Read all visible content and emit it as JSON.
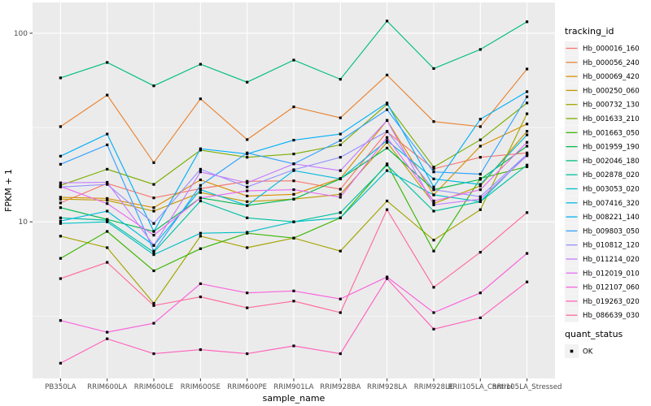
{
  "figure": {
    "y_axis_title": "FPKM + 1",
    "x_axis_title": "sample_name",
    "legend_color_title": "tracking_id",
    "legend_shape_title": "quant_status",
    "legend_shape_items": [
      {
        "label": "OK",
        "icon": "square-point-icon",
        "color": "#000000"
      }
    ],
    "panel_bg": "#EBEBEB",
    "grid_color": "#FFFFFF",
    "key_bg": "#F2F2F2",
    "tick_label_color": "#4D4D4D",
    "point_color": "#000000"
  },
  "chart_data": {
    "type": "line",
    "title": "",
    "xlabel": "sample_name",
    "ylabel": "FPKM + 1",
    "yscale": "log10",
    "ylim": [
      1.47,
      143
    ],
    "y_major_ticks": [
      10,
      100
    ],
    "y_minor_breaks": [
      3.162,
      31.62
    ],
    "grid": true,
    "legend_position": "right",
    "marker": "filled-black-square",
    "categories": [
      "PB350LA",
      "RRIM600LA",
      "RRIM600LE",
      "RRIM600SE",
      "RRIM600PE",
      "RRIM901LA",
      "RRIM928BA",
      "RRIM928LA",
      "RRIM928LE",
      "RRII105LA_Control",
      "RRII105LA_Stressed"
    ],
    "series": [
      {
        "name": "Hb_000016_160",
        "color": "#F8766D",
        "values": [
          12.6,
          16.0,
          13.4,
          15.0,
          16.4,
          16.5,
          14.9,
          30.0,
          19.1,
          22.0,
          23.2
        ]
      },
      {
        "name": "Hb_000056_240",
        "color": "#EA8331",
        "values": [
          32.0,
          47.0,
          20.6,
          44.9,
          27.3,
          40.7,
          35.6,
          60.0,
          34.0,
          32.0,
          64.6
        ]
      },
      {
        "name": "Hb_000069_420",
        "color": "#D89000",
        "values": [
          13.5,
          13.3,
          11.9,
          16.7,
          13.7,
          14.0,
          17.0,
          34.5,
          13.9,
          25.2,
          33.0
        ]
      },
      {
        "name": "Hb_000250_060",
        "color": "#C09B00",
        "values": [
          13.2,
          13.0,
          11.4,
          14.3,
          12.8,
          13.2,
          14.0,
          26.4,
          12.5,
          15.5,
          30.2
        ]
      },
      {
        "name": "Hb_000732_130",
        "color": "#A3A500",
        "values": [
          8.4,
          7.3,
          3.7,
          8.4,
          7.3,
          8.2,
          7.0,
          12.9,
          8.0,
          11.6,
          37.4
        ]
      },
      {
        "name": "Hb_001633_210",
        "color": "#7CAE00",
        "values": [
          15.6,
          19.0,
          15.8,
          24.0,
          22.0,
          22.9,
          25.6,
          42.0,
          19.5,
          27.2,
          42.7
        ]
      },
      {
        "name": "Hb_001663_050",
        "color": "#39B600",
        "values": [
          6.4,
          8.9,
          5.5,
          7.2,
          8.7,
          8.2,
          10.5,
          20.3,
          7.0,
          17.0,
          19.6
        ]
      },
      {
        "name": "Hb_001959_190",
        "color": "#00BB4E",
        "values": [
          11.9,
          10.3,
          8.9,
          13.4,
          12.2,
          13.2,
          16.9,
          24.6,
          14.8,
          16.8,
          25.2
        ]
      },
      {
        "name": "Hb_002046_180",
        "color": "#00BF7D",
        "values": [
          58.0,
          70.0,
          52.6,
          68.5,
          55.0,
          72.0,
          57.0,
          116.0,
          65.0,
          82.0,
          115.0
        ]
      },
      {
        "name": "Hb_002878_020",
        "color": "#00C1A3",
        "values": [
          10.5,
          10.2,
          6.9,
          12.9,
          10.5,
          10.0,
          11.2,
          20.0,
          11.4,
          12.8,
          20.0
        ]
      },
      {
        "name": "Hb_003053_020",
        "color": "#00BFC4",
        "values": [
          9.8,
          10.0,
          6.7,
          8.7,
          8.8,
          10.0,
          10.5,
          18.7,
          13.9,
          12.8,
          22.8
        ]
      },
      {
        "name": "Hb_007416_320",
        "color": "#00BAE0",
        "values": [
          10.1,
          11.4,
          7.5,
          14.8,
          12.2,
          18.7,
          16.9,
          27.0,
          16.9,
          15.8,
          28.9
        ]
      },
      {
        "name": "Hb_008221_140",
        "color": "#00B0F6",
        "values": [
          22.3,
          29.2,
          8.9,
          24.4,
          22.9,
          27.1,
          29.2,
          42.7,
          15.3,
          35.0,
          49.0
        ]
      },
      {
        "name": "Hb_009803_050",
        "color": "#35A2FF",
        "values": [
          20.2,
          25.6,
          7.0,
          15.6,
          23.2,
          20.3,
          27.0,
          39.3,
          18.4,
          17.9,
          46.0
        ]
      },
      {
        "name": "Hb_010812_120",
        "color": "#9590FF",
        "values": [
          15.3,
          15.8,
          9.8,
          19.0,
          15.3,
          18.9,
          22.0,
          30.2,
          14.8,
          13.6,
          22.8
        ]
      },
      {
        "name": "Hb_011214_020",
        "color": "#C77CFF",
        "values": [
          16.1,
          16.2,
          7.5,
          18.4,
          16.1,
          20.3,
          18.7,
          34.5,
          12.3,
          13.2,
          22.4
        ]
      },
      {
        "name": "Hb_012019_010",
        "color": "#E76BF3",
        "values": [
          15.4,
          12.5,
          8.5,
          13.4,
          14.6,
          14.8,
          13.5,
          28.0,
          12.9,
          14.8,
          26.4
        ]
      },
      {
        "name": "Hb_012107_060",
        "color": "#FA62DB",
        "values": [
          3.0,
          2.6,
          2.9,
          4.7,
          4.2,
          4.3,
          3.9,
          5.1,
          3.3,
          4.2,
          6.8
        ]
      },
      {
        "name": "Hb_019263_020",
        "color": "#FF62BC",
        "values": [
          1.78,
          2.4,
          2.0,
          2.1,
          2.0,
          2.2,
          2.0,
          5.0,
          2.7,
          3.1,
          4.8
        ]
      },
      {
        "name": "Hb_086639_030",
        "color": "#FF6A98",
        "values": [
          5.0,
          6.1,
          3.6,
          4.0,
          3.5,
          3.8,
          3.3,
          11.6,
          4.5,
          6.9,
          11.2
        ]
      }
    ]
  }
}
